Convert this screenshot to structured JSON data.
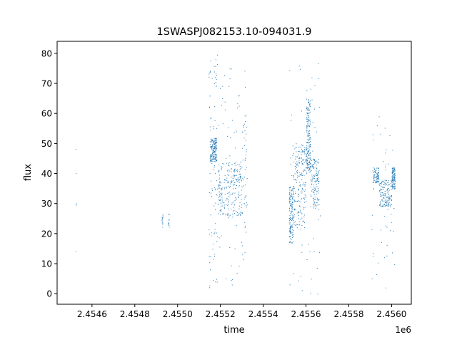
{
  "chart_data": {
    "type": "scatter",
    "title": "1SWASPJ082153.10-094031.9",
    "xlabel": "time",
    "ylabel": "flux",
    "x_offset_label": "1e6",
    "xlim": [
      2454437,
      2456092
    ],
    "ylim": [
      -3.5,
      84
    ],
    "x_ticks": [
      2.4546,
      2.4548,
      2.455,
      2.4552,
      2.4554,
      2.4556,
      2.4558,
      2.456
    ],
    "x_tick_labels": [
      "2.4546",
      "2.4548",
      "2.4550",
      "2.4552",
      "2.4554",
      "2.4556",
      "2.4558",
      "2.4560"
    ],
    "y_ticks": [
      0,
      10,
      20,
      30,
      40,
      50,
      60,
      70,
      80
    ],
    "y_tick_labels": [
      "0",
      "10",
      "20",
      "30",
      "40",
      "50",
      "60",
      "70",
      "80"
    ],
    "grid": false,
    "marker_color": "#1f77b4",
    "series": [
      {
        "clusters": [
          {
            "x": [
              2454524,
              2454526
            ],
            "y": [
              4,
              52
            ],
            "n": 5
          },
          {
            "x": [
              2454924,
              2454930
            ],
            "y": [
              22,
              27
            ],
            "n": 12
          },
          {
            "x": [
              2454956,
              2454960
            ],
            "y": [
              22,
              27
            ],
            "n": 12
          },
          {
            "x": [
              2455145,
              2455185
            ],
            "y": [
              2,
              80
            ],
            "n": 90
          },
          {
            "x": [
              2455150,
              2455182
            ],
            "y": [
              44,
              52
            ],
            "n": 160
          },
          {
            "x": [
              2455188,
              2455300
            ],
            "y": [
              26,
              44
            ],
            "n": 220
          },
          {
            "x": [
              2455190,
              2455320
            ],
            "y": [
              2,
              76
            ],
            "n": 80
          },
          {
            "x": [
              2455300,
              2455324
            ],
            "y": [
              22,
              60
            ],
            "n": 40
          },
          {
            "x": [
              2455520,
              2455540
            ],
            "y": [
              17,
              36
            ],
            "n": 150
          },
          {
            "x": [
              2455540,
              2455600
            ],
            "y": [
              22,
              50
            ],
            "n": 180
          },
          {
            "x": [
              2455600,
              2455620
            ],
            "y": [
              40,
              65
            ],
            "n": 180
          },
          {
            "x": [
              2455620,
              2455660
            ],
            "y": [
              28,
              45
            ],
            "n": 130
          },
          {
            "x": [
              2455520,
              2455665
            ],
            "y": [
              0,
              80
            ],
            "n": 70
          },
          {
            "x": [
              2455910,
              2455940
            ],
            "y": [
              37,
              42
            ],
            "n": 80
          },
          {
            "x": [
              2455940,
              2456000
            ],
            "y": [
              29,
              38
            ],
            "n": 140
          },
          {
            "x": [
              2456000,
              2456015
            ],
            "y": [
              35,
              42
            ],
            "n": 100
          },
          {
            "x": [
              2455905,
              2456015
            ],
            "y": [
              2,
              60
            ],
            "n": 50
          }
        ]
      }
    ]
  }
}
